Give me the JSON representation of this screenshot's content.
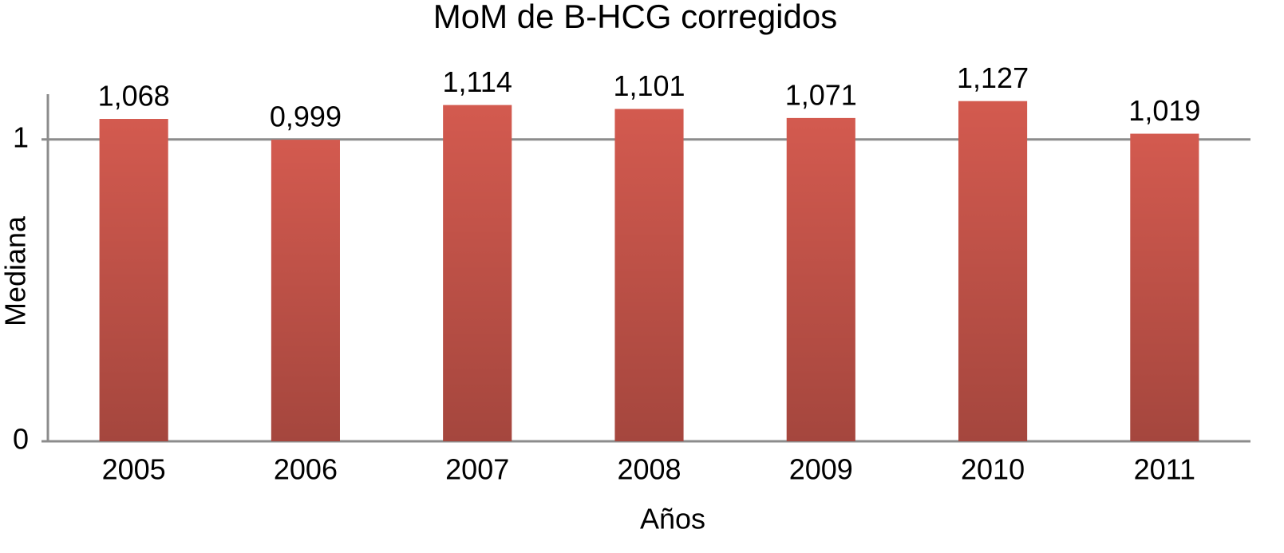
{
  "chart_data": {
    "type": "bar",
    "title": "MoM de B-HCG corregidos",
    "x_label": "Años",
    "y_label": "Mediana",
    "categories": [
      "2005",
      "2006",
      "2007",
      "2008",
      "2009",
      "2010",
      "2011"
    ],
    "values": [
      1.068,
      0.999,
      1.114,
      1.101,
      1.071,
      1.127,
      1.019
    ],
    "value_labels": [
      "1,068",
      "0,999",
      "1,114",
      "1,101",
      "1,071",
      "1,127",
      "1,019"
    ],
    "color": "#d35a4f",
    "ylim": [
      0,
      1.15
    ],
    "yticks": [
      0,
      1
    ],
    "grid": true
  }
}
